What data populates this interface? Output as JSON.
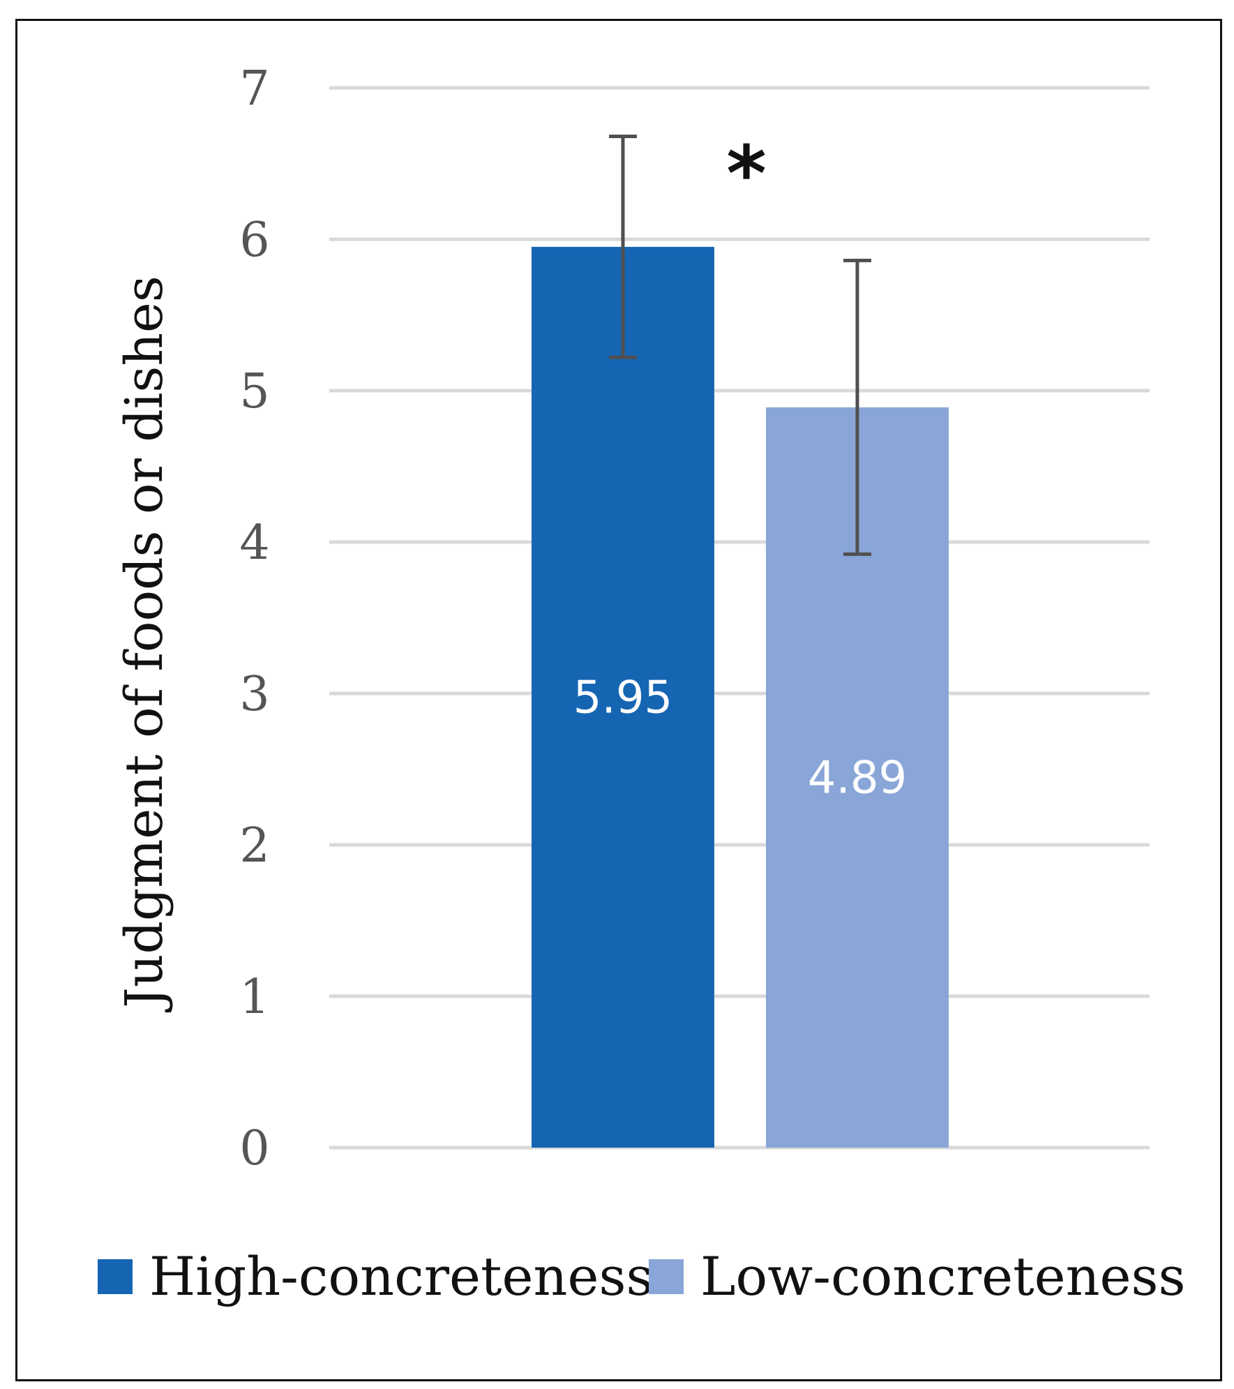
{
  "chart_data": {
    "type": "bar",
    "title": "",
    "xlabel": "",
    "ylabel": "Judgment of foods or dishes",
    "ylim": [
      0,
      7
    ],
    "yticks": [
      0,
      1,
      2,
      3,
      4,
      5,
      6,
      7
    ],
    "grid": true,
    "legend_position": "bottom",
    "series": [
      {
        "name": "High-concreteness",
        "value": 5.95,
        "value_label": "5.95",
        "error_upper": 6.68,
        "error_lower": 5.22,
        "color": "#1565b3"
      },
      {
        "name": "Low-concreteness",
        "value": 4.89,
        "value_label": "4.89",
        "error_upper": 5.86,
        "error_lower": 3.92,
        "color": "#8aa6d8"
      }
    ],
    "annotation": "*"
  },
  "colors": {
    "grid": "#d9d9d9",
    "tick_text": "#555555",
    "error_bar": "#505050"
  }
}
